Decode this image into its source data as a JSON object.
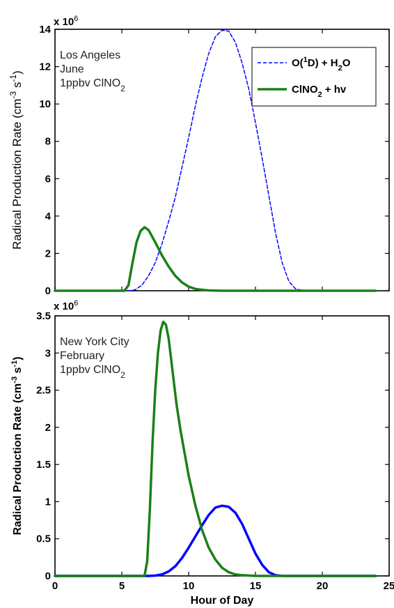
{
  "chart_data": [
    {
      "type": "line",
      "xlabel": "",
      "ylabel": "Radical Production Rate (cm^-3 s^-1)",
      "ylabel_parts": {
        "main": "Radical Production Rate (cm",
        "sup1": "-3",
        "mid": " s",
        "sup2": "-1",
        "end": ")"
      },
      "multiplier": {
        "base": "x 10",
        "exp": "6"
      },
      "xlim": [
        0,
        25
      ],
      "ylim": [
        0,
        14
      ],
      "xticks": [
        0,
        5,
        10,
        15,
        20,
        25
      ],
      "yticks": [
        0,
        2,
        4,
        6,
        8,
        10,
        12,
        14
      ],
      "xtick_labels_visible": false,
      "annotation": {
        "line1": "Los Angeles",
        "line2": "June",
        "line3_main": "1ppbv ClNO",
        "line3_sub": "2"
      },
      "legend": {
        "placement": "top-right",
        "entries": [
          {
            "parts": [
              "O(",
              "1",
              "D) + H",
              "2",
              "O"
            ],
            "label": "O(1D) + H2O",
            "color": "#0000ff",
            "style": "dashed"
          },
          {
            "parts": [
              "ClNO",
              "2",
              " + hv"
            ],
            "label": "ClNO2 + hv",
            "color": "#1a8019",
            "style": "solid"
          }
        ]
      },
      "series": [
        {
          "name": "O(1D) + H2O",
          "color": "#0000ff",
          "style": "dashed",
          "x": [
            0,
            5.5,
            6,
            6.5,
            7,
            7.5,
            8,
            8.5,
            9,
            9.5,
            10,
            10.5,
            11,
            11.5,
            12,
            12.5,
            13,
            13.5,
            14,
            14.5,
            15,
            15.5,
            16,
            16.5,
            17,
            17.5,
            18,
            18.5,
            19,
            24
          ],
          "y": [
            0,
            0,
            0.05,
            0.3,
            0.8,
            1.5,
            2.5,
            3.7,
            5.0,
            6.6,
            8.2,
            9.9,
            11.4,
            12.7,
            13.6,
            13.95,
            13.9,
            13.3,
            12.2,
            10.8,
            9.0,
            7.1,
            5.1,
            3.1,
            1.5,
            0.5,
            0.1,
            0.02,
            0,
            0
          ]
        },
        {
          "name": "ClNO2 + hv",
          "color": "#1a8019",
          "style": "solid",
          "x": [
            0,
            5.2,
            5.5,
            5.8,
            6.1,
            6.4,
            6.7,
            7.0,
            7.5,
            8.0,
            8.5,
            9.0,
            9.5,
            10.0,
            10.5,
            11.0,
            11.5,
            12.0,
            12.5,
            24
          ],
          "y": [
            0,
            0,
            0.3,
            1.5,
            2.6,
            3.2,
            3.4,
            3.25,
            2.6,
            1.9,
            1.3,
            0.8,
            0.45,
            0.22,
            0.1,
            0.05,
            0.02,
            0.01,
            0,
            0
          ]
        }
      ]
    },
    {
      "type": "line",
      "xlabel": "Hour of Day",
      "ylabel": "Radical Production Rate (cm^-3 s^-1)",
      "ylabel_parts": {
        "main": "Radical Production Rate (cm",
        "sup1": "-3",
        "mid": " s",
        "sup2": "-1",
        "end": ")"
      },
      "multiplier": {
        "base": "x 10",
        "exp": "6"
      },
      "xlim": [
        0,
        25
      ],
      "ylim": [
        0,
        3.5
      ],
      "xticks": [
        0,
        5,
        10,
        15,
        20,
        25
      ],
      "yticks": [
        0,
        0.5,
        1,
        1.5,
        2,
        2.5,
        3,
        3.5
      ],
      "xtick_labels_visible": true,
      "annotation": {
        "line1": "New York City",
        "line2": "February",
        "line3_main": "1ppbv ClNO",
        "line3_sub": "2"
      },
      "series": [
        {
          "name": "O(1D) + H2O",
          "color": "#0000ff",
          "style": "solid",
          "x": [
            0,
            7.0,
            7.5,
            8.0,
            8.5,
            9.0,
            9.5,
            10.0,
            10.5,
            11.0,
            11.5,
            12.0,
            12.5,
            13.0,
            13.5,
            14.0,
            14.5,
            15.0,
            15.5,
            16.0,
            16.5,
            17.0,
            24
          ],
          "y": [
            0,
            0,
            0.005,
            0.02,
            0.06,
            0.13,
            0.24,
            0.38,
            0.53,
            0.68,
            0.82,
            0.92,
            0.945,
            0.93,
            0.85,
            0.7,
            0.5,
            0.3,
            0.15,
            0.05,
            0.01,
            0,
            0
          ]
        },
        {
          "name": "ClNO2 + hv",
          "color": "#1a8019",
          "style": "solid",
          "x": [
            0,
            6.7,
            6.9,
            7.1,
            7.3,
            7.5,
            7.7,
            7.9,
            8.1,
            8.3,
            8.5,
            8.8,
            9.1,
            9.4,
            9.7,
            10.0,
            10.5,
            11.0,
            11.5,
            12.0,
            12.5,
            13.0,
            13.5,
            14.0,
            15.0,
            24
          ],
          "y": [
            0,
            0,
            0.2,
            0.9,
            1.8,
            2.5,
            3.0,
            3.3,
            3.42,
            3.38,
            3.2,
            2.75,
            2.3,
            1.95,
            1.65,
            1.35,
            0.95,
            0.62,
            0.38,
            0.22,
            0.11,
            0.05,
            0.02,
            0.01,
            0,
            0
          ]
        }
      ]
    }
  ]
}
